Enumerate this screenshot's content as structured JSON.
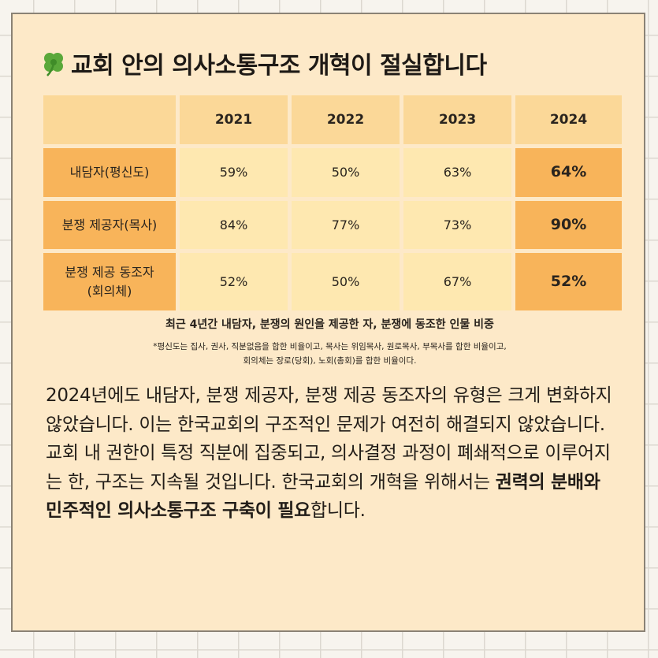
{
  "title": "교회 안의 의사소통구조 개혁이 절실합니다",
  "icons": {
    "title_icon": "four-leaf-clover-icon"
  },
  "colors": {
    "card_bg": "#fde9c8",
    "header_bg": "#fbd898",
    "row_label_bg": "#f8b45a",
    "value_bg": "#fee8b0",
    "highlight_bg": "#f8b45a"
  },
  "table": {
    "headers": [
      "",
      "2021",
      "2022",
      "2023",
      "2024"
    ],
    "rows": [
      {
        "label": "내담자(평신도)",
        "values": [
          "59%",
          "50%",
          "63%",
          "64%"
        ]
      },
      {
        "label": "분쟁 제공자(목사)",
        "values": [
          "84%",
          "77%",
          "73%",
          "90%"
        ]
      },
      {
        "label": "분쟁 제공 동조자\n(회의체)",
        "values": [
          "52%",
          "50%",
          "67%",
          "52%"
        ]
      }
    ]
  },
  "caption": "최근 4년간 내담자, 분쟁의 원인을 제공한 자, 분쟁에 동조한 인물 비중",
  "note_line1": "*평신도는 집사, 권사, 직분없음을 합한 비율이고, 목사는 위임목사, 원로목사, 부목사를 합한 비율이고,",
  "note_line2": "회의체는 장로(당회), 노회(총회)를 합한 비율이다.",
  "paragraph": {
    "text": "2024년에도 내담자, 분쟁 제공자, 분쟁 제공 동조자의 유형은 크게 변화하지 않았습니다. 이는 한국교회의 구조적인 문제가 여전히 해결되지 않았습니다. 교회 내 권한이 특정 직분에 집중되고, 의사결정 과정이 폐쇄적으로 이루어지는 한, 구조는 지속될 것입니다. 한국교회의 개혁을 위해서는 ",
    "bold": "권력의 분배와 민주적인 의사소통구조 구축이 필요",
    "tail": "합니다."
  }
}
